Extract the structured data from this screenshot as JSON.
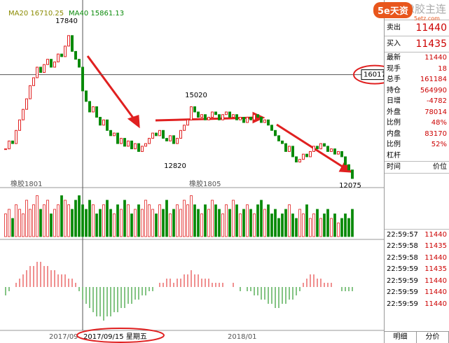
{
  "indicators": {
    "ma20": "MA20 16710.25",
    "ma40": "MA40 15861.13"
  },
  "price_labels": {
    "high": 17840,
    "mid_high": 15020,
    "mid_low": 12820,
    "low": 12075,
    "cursor": 16017
  },
  "contract_labels": [
    "橡胶1801",
    "橡胶1805"
  ],
  "date_labels": [
    "2017/09",
    "2017/09/15 星期五",
    "2018/01"
  ],
  "kline": {
    "closes": [
      13200,
      13500,
      13400,
      13900,
      14300,
      14700,
      15100,
      15600,
      15900,
      16300,
      16100,
      16400,
      16600,
      16300,
      16500,
      16800,
      16700,
      17100,
      17500,
      16900,
      16600,
      16300,
      15400,
      15000,
      14600,
      14800,
      14400,
      14100,
      14300,
      13900,
      13700,
      13800,
      13400,
      13600,
      13300,
      13500,
      13200,
      13400,
      13100,
      13300,
      13400,
      13600,
      13800,
      13700,
      13900,
      13600,
      13500,
      13700,
      13400,
      13600,
      13900,
      14100,
      14300,
      14800,
      14600,
      14400,
      14500,
      14300,
      14400,
      14600,
      14500,
      14300,
      14500,
      14600,
      14400,
      14500,
      14300,
      14400,
      14200,
      14400,
      14300,
      14500,
      14400,
      14200,
      14300,
      14100,
      13900,
      13700,
      13500,
      13400,
      13100,
      13300,
      12900,
      12700,
      12800,
      13000,
      12900,
      13100,
      13300,
      13200,
      13400,
      13300,
      13100,
      13200,
      13000,
      13100,
      12900,
      12600,
      12400,
      12075
    ]
  },
  "volume": [
    5,
    6,
    4,
    7,
    6,
    5,
    8,
    6,
    7,
    9,
    6,
    7,
    8,
    5,
    6,
    7,
    9,
    8,
    7,
    6,
    8,
    9,
    7,
    6,
    8,
    7,
    5,
    6,
    7,
    8,
    6,
    5,
    7,
    6,
    8,
    7,
    5,
    6,
    7,
    6,
    8,
    7,
    6,
    5,
    7,
    6,
    8,
    5,
    6,
    7,
    6,
    8,
    7,
    9,
    7,
    6,
    5,
    7,
    6,
    8,
    7,
    6,
    5,
    7,
    6,
    8,
    7,
    5,
    6,
    7,
    6,
    5,
    7,
    8,
    6,
    7,
    5,
    6,
    4,
    5,
    6,
    7,
    5,
    4,
    6,
    5,
    7,
    4,
    5,
    6,
    4,
    5,
    6,
    4,
    5,
    3,
    4,
    5,
    4,
    6
  ],
  "macd": [
    -2,
    -1,
    0,
    1,
    2,
    3,
    4,
    5,
    5,
    6,
    6,
    5,
    5,
    4,
    4,
    3,
    3,
    3,
    2,
    2,
    1,
    -1,
    -3,
    -4,
    -5,
    -6,
    -7,
    -7,
    -8,
    -7,
    -7,
    -6,
    -6,
    -5,
    -5,
    -4,
    -4,
    -3,
    -3,
    -2,
    -2,
    -1,
    -1,
    0,
    1,
    1,
    2,
    2,
    1,
    2,
    2,
    3,
    3,
    4,
    3,
    3,
    2,
    2,
    2,
    1,
    1,
    1,
    1,
    0,
    0,
    1,
    0,
    -1,
    0,
    -1,
    -1,
    -2,
    -2,
    -3,
    -3,
    -4,
    -4,
    -5,
    -5,
    -4,
    -4,
    -3,
    -3,
    -2,
    -1,
    1,
    2,
    3,
    3,
    2,
    2,
    1,
    1,
    1,
    0,
    0,
    -1,
    -1,
    -1,
    -1
  ],
  "quote": {
    "title": "橡胶主连",
    "logo": "5e天资",
    "logo_url": "5etz.com",
    "ask_label": "卖出",
    "ask": "11440",
    "bid_label": "买入",
    "bid": "11435",
    "rows": [
      [
        "最新",
        "11440"
      ],
      [
        "现手",
        "18"
      ],
      [
        "总手",
        "161184"
      ],
      [
        "持仓",
        "564990"
      ],
      [
        "日增",
        "-4782"
      ],
      [
        "外盘",
        "78014"
      ],
      [
        "比例",
        "48%"
      ],
      [
        "内盘",
        "83170"
      ],
      [
        "比例",
        "52%"
      ],
      [
        "杠杆",
        ""
      ]
    ]
  },
  "trades_header": [
    "时间",
    "价位"
  ],
  "trades": [
    [
      "22:59:57",
      "11440"
    ],
    [
      "22:59:58",
      "11435"
    ],
    [
      "22:59:58",
      "11440"
    ],
    [
      "22:59:59",
      "11435"
    ],
    [
      "22:59:59",
      "11440"
    ],
    [
      "22:59:59",
      "11440"
    ],
    [
      "22:59:59",
      "11440"
    ]
  ],
  "tabs": [
    "明细",
    "分价"
  ]
}
